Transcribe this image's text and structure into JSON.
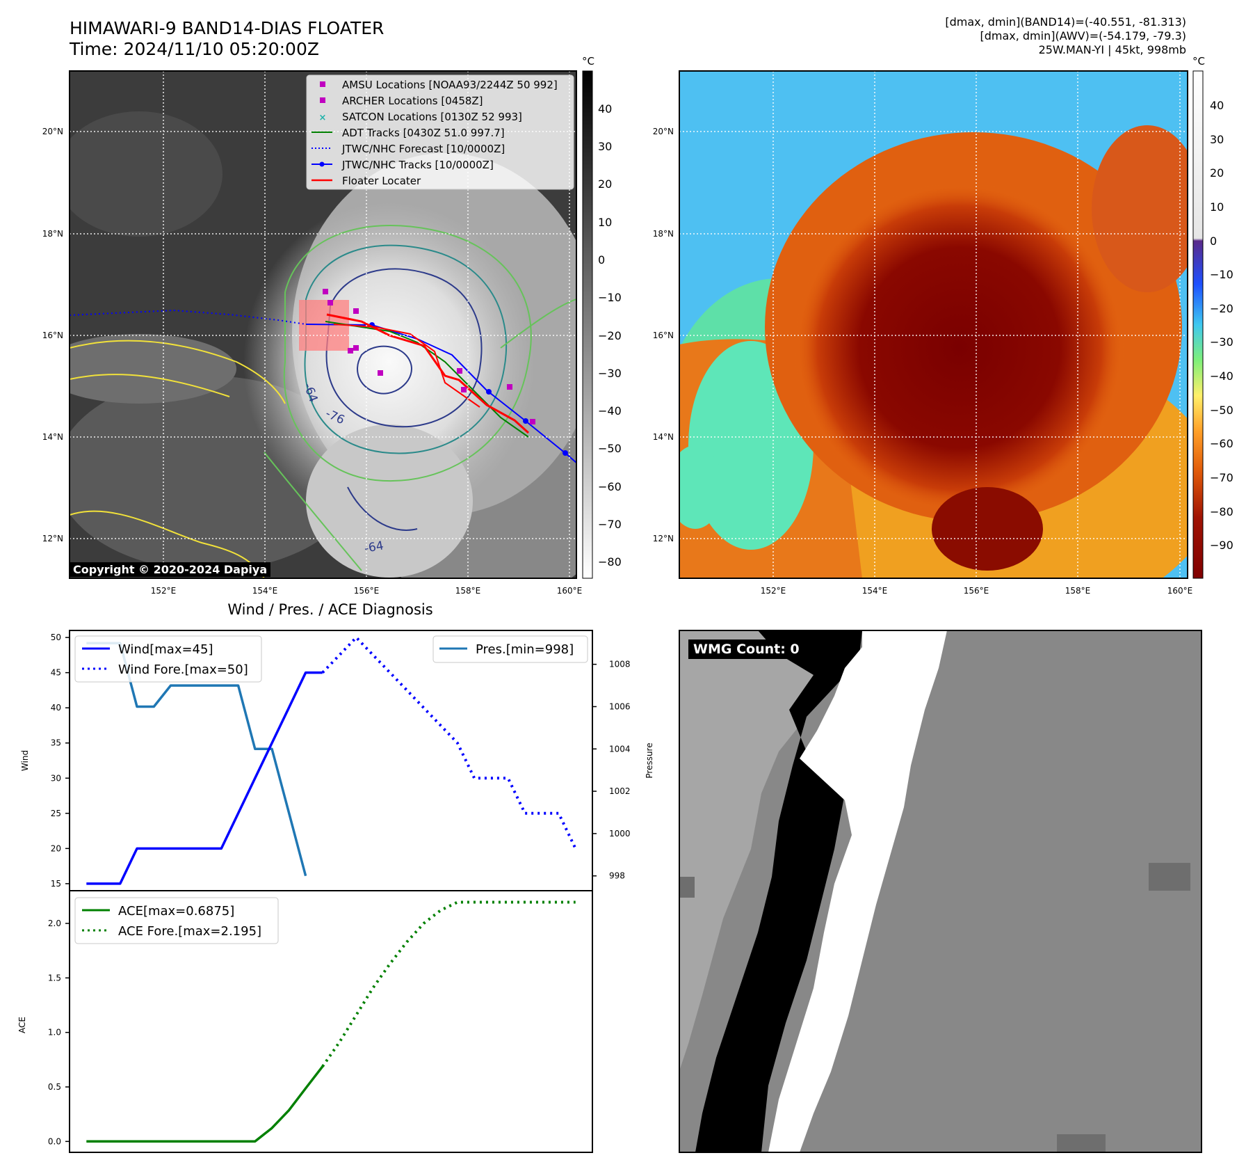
{
  "header": {
    "title_line1": "HIMAWARI-9 BAND14-DIAS FLOATER",
    "title_line2": "Time: 2024/11/10 05:20:00Z",
    "info_line1": "[dmax, dmin](BAND14)=(-40.551, -81.313)",
    "info_line2": "[dmax, dmin](AWV)=(-54.179, -79.3)",
    "info_line3": "25W.MAN-YI | 45kt, 998mb"
  },
  "map": {
    "lat_ticks": [
      "20°N",
      "18°N",
      "16°N",
      "14°N",
      "12°N"
    ],
    "lon_ticks": [
      "152°E",
      "154°E",
      "156°E",
      "158°E",
      "160°E"
    ],
    "copyright": "Copyright © 2020-2024 Dapiya",
    "contour_labels": [
      "-64",
      "-76",
      "-64"
    ],
    "legend": [
      {
        "label": "AMSU Locations [NOAA93/2244Z 50 992]",
        "color": "#c000c0",
        "kind": "square"
      },
      {
        "label": "ARCHER Locations [0458Z]",
        "color": "#c000c0",
        "kind": "square"
      },
      {
        "label": "SATCON Locations [0130Z 52 993]",
        "color": "#20b2aa",
        "kind": "x"
      },
      {
        "label": "ADT Tracks [0430Z 51.0 997.7]",
        "color": "#008000",
        "kind": "line"
      },
      {
        "label": "JTWC/NHC Forecast [10/0000Z]",
        "color": "#0000ff",
        "kind": "dotted"
      },
      {
        "label": "JTWC/NHC Tracks [10/0000Z]",
        "color": "#0000ff",
        "kind": "line-dot"
      },
      {
        "label": "Floater Locater",
        "color": "#ff0000",
        "kind": "line"
      }
    ]
  },
  "colorbar_left": {
    "unit": "°C",
    "ticks": [
      "40",
      "30",
      "20",
      "10",
      "0",
      "−10",
      "−20",
      "−30",
      "−40",
      "−50",
      "−60",
      "−70",
      "−80"
    ]
  },
  "colorbar_right": {
    "unit": "°C",
    "ticks": [
      "40",
      "30",
      "20",
      "10",
      "0",
      "−10",
      "−20",
      "−30",
      "−40",
      "−50",
      "−60",
      "−70",
      "−80",
      "−90"
    ]
  },
  "wmg": {
    "label": "WMG Count: 0"
  },
  "chart_data": [
    {
      "type": "line",
      "title": "Wind / Pres. / ACE Diagnosis",
      "ylabel": "Wind",
      "y2label": "Pressure",
      "ylim": [
        14,
        51
      ],
      "y2lim": [
        997.3,
        1009.6
      ],
      "yticks": [
        15,
        20,
        25,
        30,
        35,
        40,
        45,
        50
      ],
      "y2ticks": [
        998,
        1000,
        1002,
        1004,
        1006,
        1008
      ],
      "xlim": [
        0,
        31
      ],
      "series": [
        {
          "name": "Wind[max=45]",
          "color": "#0000ff",
          "style": "solid",
          "x": [
            1,
            3,
            4,
            5,
            6,
            7,
            8,
            9,
            10,
            11,
            12,
            13,
            14,
            15
          ],
          "values": [
            15,
            15,
            20,
            20,
            20,
            20,
            20,
            20,
            25,
            30,
            35,
            40,
            45,
            45
          ]
        },
        {
          "name": "Wind Fore.[max=50]",
          "color": "#0000ff",
          "style": "dotted",
          "x": [
            15,
            16,
            17,
            18,
            19,
            20,
            21,
            22,
            23,
            24,
            25,
            26,
            27,
            28,
            29,
            30
          ],
          "values": [
            45,
            47.5,
            50,
            47.5,
            45,
            42.5,
            40,
            37.5,
            35,
            30,
            30,
            30,
            25,
            25,
            25,
            20
          ]
        },
        {
          "name": "Pres.[min=998]",
          "color": "#1f77b4",
          "style": "solid",
          "axis": "right",
          "x": [
            1,
            2,
            3,
            4,
            5,
            6,
            7,
            8,
            9,
            10,
            11,
            12,
            13,
            14
          ],
          "values": [
            1009,
            1009,
            1009,
            1006,
            1006,
            1007,
            1007,
            1007,
            1007,
            1007,
            1004,
            1004,
            1001,
            998
          ]
        }
      ]
    },
    {
      "type": "line",
      "ylabel": "ACE",
      "ylim": [
        -0.1,
        2.3
      ],
      "yticks": [
        "0.0",
        "0.5",
        "1.0",
        "1.5",
        "2.0"
      ],
      "xlim": [
        0,
        31
      ],
      "series": [
        {
          "name": "ACE[max=0.6875]",
          "color": "#008000",
          "style": "solid",
          "x": [
            1,
            6,
            11,
            12,
            13,
            14,
            15
          ],
          "values": [
            0,
            0,
            0,
            0.1225,
            0.285,
            0.4875,
            0.6875
          ]
        },
        {
          "name": "ACE Fore.[max=2.195]",
          "color": "#008000",
          "style": "dotted",
          "x": [
            15,
            16,
            17,
            18,
            19,
            20,
            21,
            22,
            23,
            24,
            25,
            26,
            27,
            28,
            29,
            30
          ],
          "values": [
            0.6875,
            0.91,
            1.16,
            1.41,
            1.63,
            1.83,
            2.0,
            2.12,
            2.195,
            2.195,
            2.195,
            2.195,
            2.195,
            2.195,
            2.195,
            2.195
          ]
        }
      ]
    }
  ]
}
